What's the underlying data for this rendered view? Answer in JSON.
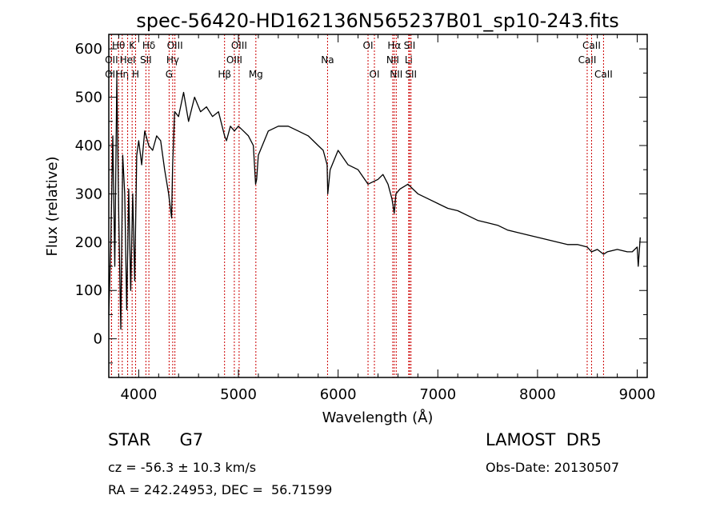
{
  "chart_data": {
    "type": "line",
    "title": "spec-56420-HD162136N565237B01_sp10-243.fits",
    "xlabel": "Wavelength (Å)",
    "ylabel": "Flux (relative)",
    "xlim": [
      3700,
      9100
    ],
    "ylim": [
      -80,
      630
    ],
    "xticks": [
      4000,
      5000,
      6000,
      7000,
      8000,
      9000
    ],
    "yticks": [
      0,
      100,
      200,
      300,
      400,
      500,
      600
    ],
    "grid": false,
    "line_color": "#000000",
    "marker_color": "#cc0000",
    "series": [
      {
        "x": [
          3700,
          3720,
          3740,
          3760,
          3780,
          3800,
          3820,
          3840,
          3860,
          3880,
          3900,
          3920,
          3940,
          3960,
          3980,
          4000,
          4030,
          4060,
          4100,
          4140,
          4180,
          4220,
          4260,
          4300,
          4330,
          4340,
          4360,
          4400,
          4450,
          4500,
          4560,
          4620,
          4680,
          4740,
          4800,
          4861,
          4880,
          4920,
          4960,
          5000,
          5050,
          5100,
          5150,
          5172,
          5183,
          5200,
          5300,
          5400,
          5500,
          5600,
          5700,
          5800,
          5850,
          5890,
          5896,
          5920,
          6000,
          6100,
          6200,
          6300,
          6400,
          6450,
          6500,
          6540,
          6563,
          6580,
          6620,
          6700,
          6800,
          6900,
          7000,
          7100,
          7200,
          7300,
          7400,
          7500,
          7600,
          7700,
          7800,
          7900,
          8000,
          8100,
          8200,
          8300,
          8400,
          8498,
          8542,
          8600,
          8662,
          8700,
          8800,
          8900,
          8950,
          9000,
          9010,
          9030
        ],
        "y": [
          50,
          200,
          420,
          150,
          540,
          250,
          20,
          380,
          300,
          60,
          310,
          100,
          300,
          120,
          380,
          410,
          360,
          430,
          400,
          390,
          420,
          410,
          350,
          300,
          250,
          360,
          470,
          460,
          510,
          450,
          500,
          470,
          480,
          460,
          470,
          420,
          410,
          440,
          430,
          440,
          430,
          420,
          400,
          320,
          330,
          380,
          430,
          440,
          440,
          430,
          420,
          400,
          390,
          360,
          300,
          350,
          390,
          360,
          350,
          320,
          330,
          340,
          320,
          290,
          260,
          300,
          310,
          320,
          300,
          290,
          280,
          270,
          265,
          255,
          245,
          240,
          235,
          225,
          220,
          215,
          210,
          205,
          200,
          195,
          195,
          190,
          180,
          185,
          175,
          180,
          185,
          180,
          180,
          190,
          150,
          210
        ]
      }
    ],
    "line_markers": [
      {
        "label": "OII",
        "x": 3727,
        "row": 2
      },
      {
        "label": "OII",
        "x": 3727,
        "row": 3
      },
      {
        "label": "Hθ",
        "x": 3798,
        "row": 1
      },
      {
        "label": "Hη",
        "x": 3835,
        "row": 3
      },
      {
        "label": "HeI",
        "x": 3889,
        "row": 2
      },
      {
        "label": "K",
        "x": 3934,
        "row": 1
      },
      {
        "label": "H",
        "x": 3969,
        "row": 3
      },
      {
        "label": "SII",
        "x": 4072,
        "row": 2
      },
      {
        "label": "Hδ",
        "x": 4102,
        "row": 1
      },
      {
        "label": "G",
        "x": 4305,
        "row": 3
      },
      {
        "label": "Hγ",
        "x": 4341,
        "row": 2
      },
      {
        "label": "OIII",
        "x": 4363,
        "row": 1
      },
      {
        "label": "Hβ",
        "x": 4861,
        "row": 3
      },
      {
        "label": "OIII",
        "x": 4959,
        "row": 2
      },
      {
        "label": "OIII",
        "x": 5007,
        "row": 1
      },
      {
        "label": "Mg",
        "x": 5175,
        "row": 3
      },
      {
        "label": "Na",
        "x": 5894,
        "row": 2
      },
      {
        "label": "OI",
        "x": 6300,
        "row": 1
      },
      {
        "label": "OI",
        "x": 6364,
        "row": 3
      },
      {
        "label": "NII",
        "x": 6548,
        "row": 2
      },
      {
        "label": "Hα",
        "x": 6563,
        "row": 1
      },
      {
        "label": "NII",
        "x": 6583,
        "row": 3
      },
      {
        "label": "Li",
        "x": 6708,
        "row": 2
      },
      {
        "label": "SII",
        "x": 6717,
        "row": 1
      },
      {
        "label": "SII",
        "x": 6731,
        "row": 3
      },
      {
        "label": "CaII",
        "x": 8498,
        "row": 2
      },
      {
        "label": "CaII",
        "x": 8542,
        "row": 1
      },
      {
        "label": "CaII",
        "x": 8662,
        "row": 3
      }
    ]
  },
  "info": {
    "object_class": "STAR",
    "subclass": "G7",
    "survey": "LAMOST  DR5",
    "redshift_line": "cz = -56.3 ± 10.3 km/s",
    "obs_date_line": "Obs-Date: 20130507",
    "coords_line": "RA = 242.24953, DEC =  56.71599"
  }
}
